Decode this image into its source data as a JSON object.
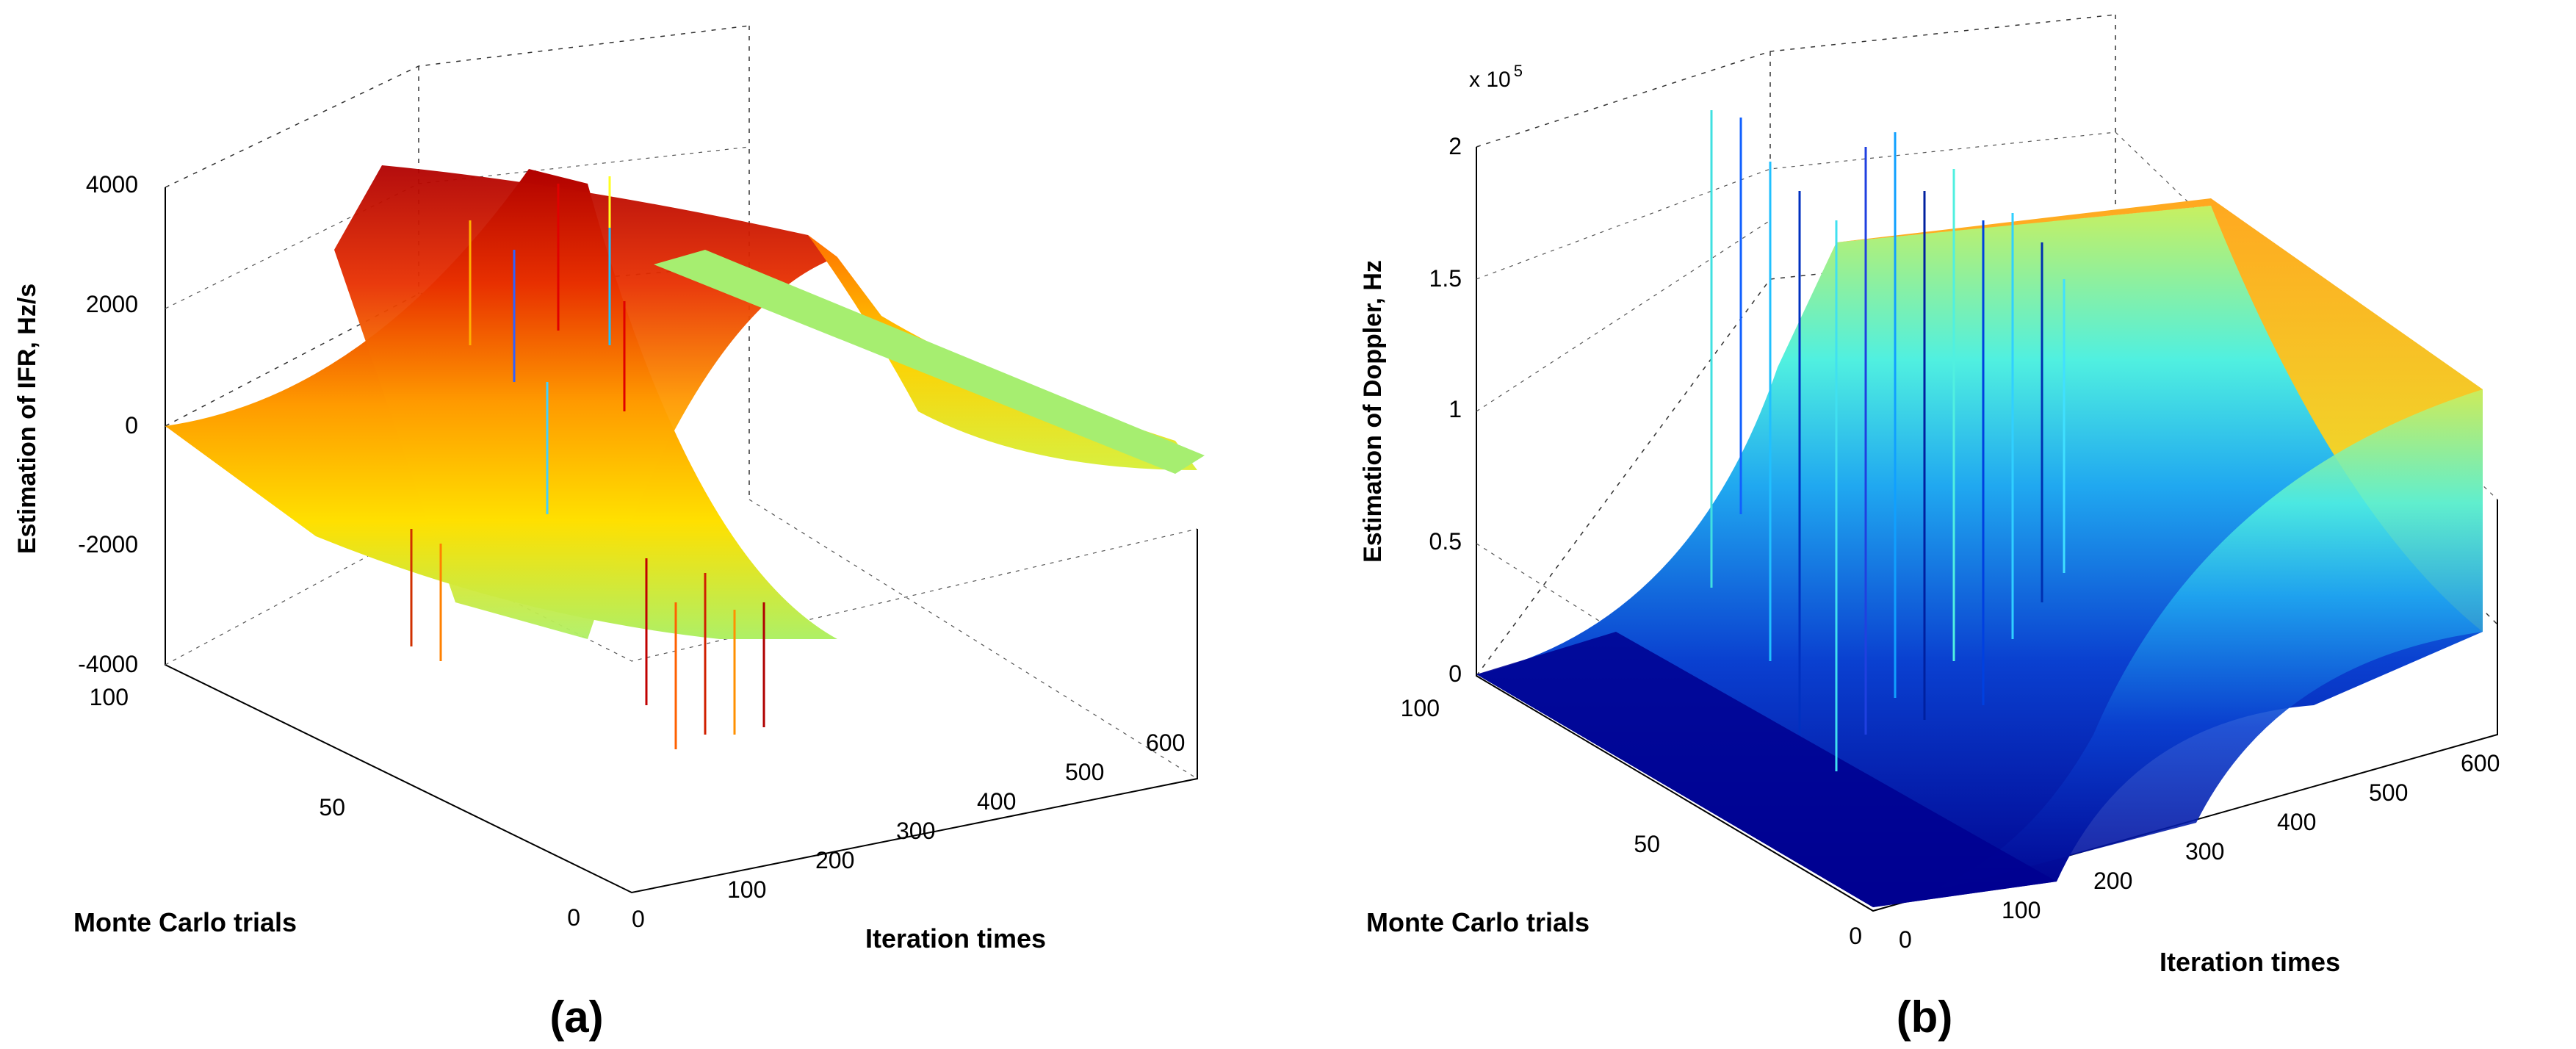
{
  "figure": {
    "panel_labels": [
      "(a)",
      "(b)"
    ]
  },
  "chart_data": [
    {
      "type": "surface",
      "panel": "(a)",
      "zlabel": "Estimation of IFR, Hz/s",
      "xlabel": "Monte Carlo trials",
      "ylabel": "Iteration times",
      "xlim": [
        0,
        100
      ],
      "ylim": [
        0,
        600
      ],
      "zlim": [
        -4000,
        4000
      ],
      "xticks": [
        "0",
        "50",
        "100"
      ],
      "yticks": [
        "0",
        "100",
        "200",
        "300",
        "400",
        "500",
        "600"
      ],
      "zticks": [
        "-4000",
        "-2000",
        "0",
        "2000",
        "4000"
      ],
      "surface": {
        "description_values": "IFR estimate rises from 0 to a ridge near 3700 Hz/s around iteration 180-220, then returns to about 0; spikes between -4000 and 4000",
        "iterations": [
          0,
          50,
          100,
          150,
          200,
          250,
          300,
          350,
          400,
          450,
          500,
          550,
          600
        ],
        "ifr": [
          0,
          50,
          400,
          2500,
          3700,
          2500,
          400,
          -300,
          -600,
          -500,
          -300,
          -150,
          0
        ]
      },
      "colormap": "jet"
    },
    {
      "type": "surface",
      "panel": "(b)",
      "zlabel": "Estimation of Doppler, Hz",
      "xlabel": "Monte Carlo trials",
      "ylabel": "Iteration times",
      "xlim": [
        0,
        100
      ],
      "ylim": [
        0,
        600
      ],
      "zlim": [
        0,
        2
      ],
      "zscale_label": "x 10",
      "zscale_exponent": "5",
      "xticks": [
        "0",
        "50",
        "100"
      ],
      "yticks": [
        "0",
        "100",
        "200",
        "300",
        "400",
        "500",
        "600"
      ],
      "zticks": [
        "0",
        "0.5",
        "1",
        "1.5",
        "2"
      ],
      "surface": {
        "description_values": "Doppler estimate (x10^5 Hz) follows an S-curve from 0 to about 1.2, with noisy spikes up to about 2 at early iterations",
        "iterations": [
          0,
          50,
          100,
          150,
          200,
          250,
          300,
          350,
          400,
          450,
          500,
          550,
          600
        ],
        "doppler": [
          0,
          0.02,
          0.08,
          0.25,
          0.5,
          0.8,
          1.0,
          1.1,
          1.15,
          1.18,
          1.2,
          1.2,
          1.2
        ]
      },
      "colormap": "jet"
    }
  ]
}
